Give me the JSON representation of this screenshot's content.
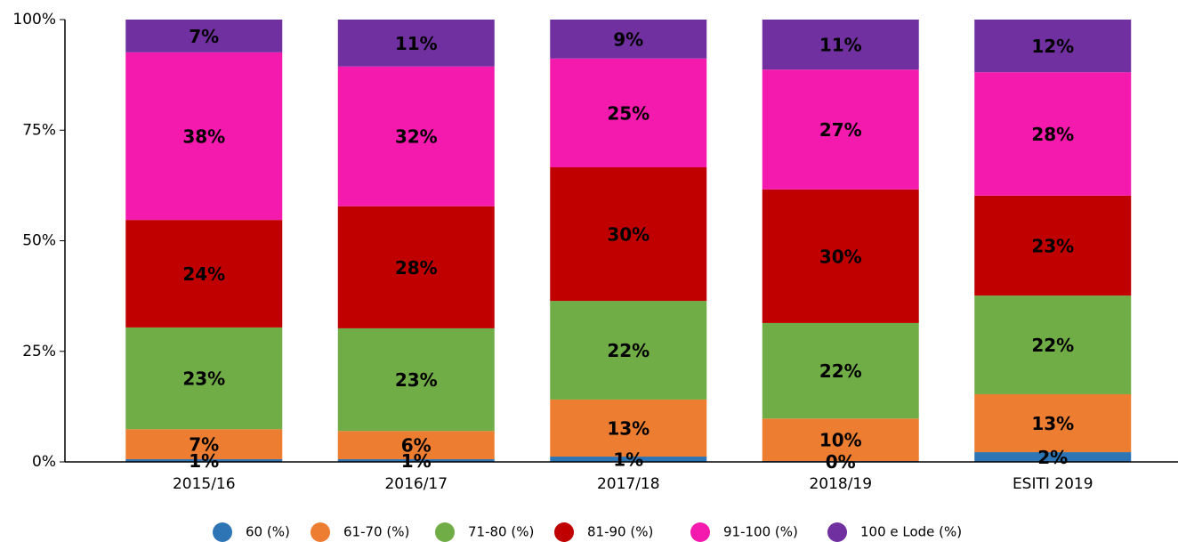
{
  "chart_data": {
    "type": "stacked_bar",
    "categories": [
      "2015/16",
      "2016/17",
      "2017/18",
      "2018/19",
      "ESITI 2019"
    ],
    "series": [
      {
        "name": "60 (%)",
        "color": "#2e75b6",
        "values": [
          0.6,
          0.6,
          1.2,
          0.2,
          2.2
        ],
        "value_labels": [
          "1%",
          "1%",
          "1%",
          "0%",
          "2%"
        ]
      },
      {
        "name": "61-70 (%)",
        "color": "#ed7d31",
        "values": [
          6.8,
          6.4,
          12.9,
          9.6,
          13.1
        ],
        "value_labels": [
          "7%",
          "6%",
          "13%",
          "10%",
          "13%"
        ]
      },
      {
        "name": "71-80 (%)",
        "color": "#70ad47",
        "values": [
          23.0,
          23.2,
          22.3,
          21.6,
          22.3
        ],
        "value_labels": [
          "23%",
          "23%",
          "22%",
          "22%",
          "22%"
        ]
      },
      {
        "name": "81-90 (%)",
        "color": "#c00000",
        "values": [
          24.3,
          27.6,
          30.2,
          30.2,
          22.6
        ],
        "value_labels": [
          "24%",
          "28%",
          "30%",
          "30%",
          "23%"
        ]
      },
      {
        "name": "91-100 (%)",
        "color": "#f31aad",
        "values": [
          37.9,
          31.6,
          24.6,
          27.1,
          27.9
        ],
        "value_labels": [
          "38%",
          "32%",
          "25%",
          "27%",
          "28%"
        ]
      },
      {
        "name": "100 e Lode (%)",
        "color": "#7030a0",
        "values": [
          7.4,
          10.6,
          8.8,
          11.3,
          11.9
        ],
        "value_labels": [
          "7%",
          "11%",
          "9%",
          "11%",
          "12%"
        ]
      }
    ],
    "ylim": [
      0,
      100
    ],
    "yticks": [
      {
        "value": 0,
        "label": "0%"
      },
      {
        "value": 25,
        "label": "25%"
      },
      {
        "value": 50,
        "label": "50%"
      },
      {
        "value": 75,
        "label": "75%"
      },
      {
        "value": 100,
        "label": "100%"
      }
    ],
    "legend": "bottom"
  }
}
